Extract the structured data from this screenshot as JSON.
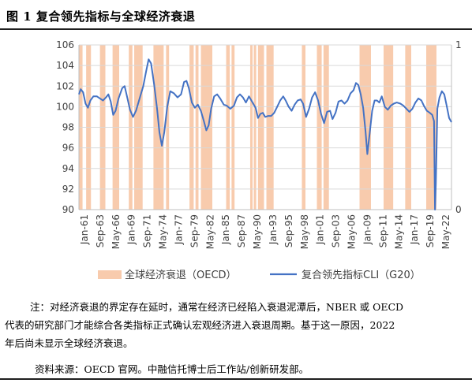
{
  "title": "图 1  复合领先指标与全球经济衰退",
  "chart_data": {
    "type": "line",
    "y_left": {
      "min": 90,
      "max": 106,
      "ticks": [
        90,
        92,
        94,
        96,
        98,
        100,
        102,
        104,
        106
      ]
    },
    "y_right": {
      "ticks": [
        "0",
        "1"
      ]
    },
    "x_tick_labels": [
      "Jan-61",
      "Sep-63",
      "May-66",
      "Jan-69",
      "Sep-71",
      "May-74",
      "Jan-77",
      "Sep-79",
      "May-82",
      "Jan-85",
      "Sep-87",
      "May-90",
      "Jan-93",
      "Sep-95",
      "May-98",
      "Jan-01",
      "Sep-03",
      "May-06",
      "Jan-09",
      "Sep-11",
      "May-14",
      "Jan-17",
      "Sep-19",
      "May-22"
    ],
    "x_range": [
      1961.0,
      2023.0
    ],
    "recession_periods": [
      [
        1961.0,
        1961.6
      ],
      [
        1962.2,
        1963.0
      ],
      [
        1964.5,
        1965.4
      ],
      [
        1966.6,
        1967.7
      ],
      [
        1969.3,
        1969.9
      ],
      [
        1970.2,
        1971.6
      ],
      [
        1973.4,
        1975.1
      ],
      [
        1975.5,
        1976.0
      ],
      [
        1979.4,
        1980.1
      ],
      [
        1980.4,
        1980.9
      ],
      [
        1981.3,
        1983.2
      ],
      [
        1985.5,
        1986.1
      ],
      [
        1986.4,
        1986.9
      ],
      [
        1989.5,
        1989.9
      ],
      [
        1990.1,
        1990.5
      ],
      [
        1990.8,
        1991.8
      ],
      [
        1992.2,
        1993.4
      ],
      [
        1998.1,
        1998.7
      ],
      [
        2000.6,
        2001.4
      ],
      [
        2001.7,
        2002.6
      ],
      [
        2007.7,
        2009.6
      ],
      [
        2011.7,
        2013.3
      ],
      [
        2015.3,
        2016.3
      ],
      [
        2018.8,
        2020.5
      ]
    ],
    "series": [
      {
        "name": "复合领先指标CLI（G20）",
        "color": "#4472C4",
        "points": [
          [
            1961.0,
            101.2
          ],
          [
            1961.3,
            101.7
          ],
          [
            1961.7,
            101.4
          ],
          [
            1962.1,
            100.3
          ],
          [
            1962.5,
            99.9
          ],
          [
            1962.9,
            100.6
          ],
          [
            1963.4,
            101.0
          ],
          [
            1964.0,
            101.0
          ],
          [
            1964.5,
            100.8
          ],
          [
            1965.0,
            100.6
          ],
          [
            1965.5,
            100.9
          ],
          [
            1965.9,
            101.2
          ],
          [
            1966.3,
            100.5
          ],
          [
            1966.7,
            99.2
          ],
          [
            1967.1,
            99.6
          ],
          [
            1967.6,
            100.8
          ],
          [
            1968.2,
            101.8
          ],
          [
            1968.6,
            102.0
          ],
          [
            1969.0,
            101.0
          ],
          [
            1969.5,
            99.7
          ],
          [
            1970.0,
            99.0
          ],
          [
            1970.5,
            99.6
          ],
          [
            1971.1,
            100.8
          ],
          [
            1971.7,
            102.0
          ],
          [
            1972.2,
            103.5
          ],
          [
            1972.6,
            104.6
          ],
          [
            1973.0,
            104.2
          ],
          [
            1973.5,
            102.2
          ],
          [
            1974.0,
            99.8
          ],
          [
            1974.4,
            97.5
          ],
          [
            1974.8,
            96.2
          ],
          [
            1975.2,
            97.5
          ],
          [
            1975.7,
            100.0
          ],
          [
            1976.2,
            101.5
          ],
          [
            1976.8,
            101.3
          ],
          [
            1977.4,
            100.9
          ],
          [
            1978.0,
            101.2
          ],
          [
            1978.5,
            102.4
          ],
          [
            1978.9,
            102.5
          ],
          [
            1979.3,
            101.8
          ],
          [
            1979.8,
            100.4
          ],
          [
            1980.3,
            99.9
          ],
          [
            1980.8,
            100.2
          ],
          [
            1981.3,
            99.6
          ],
          [
            1981.8,
            98.6
          ],
          [
            1982.2,
            97.7
          ],
          [
            1982.6,
            98.2
          ],
          [
            1983.0,
            99.8
          ],
          [
            1983.5,
            101.0
          ],
          [
            1984.0,
            101.2
          ],
          [
            1984.5,
            100.8
          ],
          [
            1985.1,
            100.2
          ],
          [
            1985.6,
            100.1
          ],
          [
            1986.2,
            99.8
          ],
          [
            1986.8,
            100.1
          ],
          [
            1987.3,
            100.9
          ],
          [
            1987.8,
            101.2
          ],
          [
            1988.3,
            100.9
          ],
          [
            1988.8,
            100.4
          ],
          [
            1989.3,
            101.0
          ],
          [
            1989.9,
            100.4
          ],
          [
            1990.4,
            99.9
          ],
          [
            1990.8,
            98.9
          ],
          [
            1991.2,
            99.3
          ],
          [
            1991.6,
            99.4
          ],
          [
            1992.0,
            99.0
          ],
          [
            1992.5,
            99.1
          ],
          [
            1993.0,
            99.1
          ],
          [
            1993.5,
            99.4
          ],
          [
            1994.0,
            100.0
          ],
          [
            1994.5,
            100.6
          ],
          [
            1995.0,
            101.0
          ],
          [
            1995.4,
            100.6
          ],
          [
            1995.9,
            100.0
          ],
          [
            1996.4,
            99.6
          ],
          [
            1996.9,
            100.2
          ],
          [
            1997.4,
            100.6
          ],
          [
            1997.9,
            100.7
          ],
          [
            1998.3,
            100.3
          ],
          [
            1998.8,
            99.0
          ],
          [
            1999.3,
            99.8
          ],
          [
            1999.8,
            100.9
          ],
          [
            2000.3,
            101.4
          ],
          [
            2000.8,
            100.6
          ],
          [
            2001.3,
            99.3
          ],
          [
            2001.8,
            98.4
          ],
          [
            2002.3,
            99.5
          ],
          [
            2002.8,
            99.6
          ],
          [
            2003.2,
            98.8
          ],
          [
            2003.7,
            99.4
          ],
          [
            2004.2,
            100.5
          ],
          [
            2004.7,
            100.6
          ],
          [
            2005.2,
            100.3
          ],
          [
            2005.7,
            100.6
          ],
          [
            2006.2,
            101.3
          ],
          [
            2006.7,
            101.6
          ],
          [
            2007.1,
            102.3
          ],
          [
            2007.5,
            102.1
          ],
          [
            2007.9,
            101.2
          ],
          [
            2008.3,
            99.9
          ],
          [
            2008.7,
            97.6
          ],
          [
            2009.0,
            95.4
          ],
          [
            2009.4,
            97.5
          ],
          [
            2009.8,
            99.6
          ],
          [
            2010.2,
            100.6
          ],
          [
            2010.6,
            100.6
          ],
          [
            2011.0,
            100.4
          ],
          [
            2011.4,
            101.0
          ],
          [
            2011.9,
            100.0
          ],
          [
            2012.4,
            99.7
          ],
          [
            2012.9,
            100.1
          ],
          [
            2013.4,
            100.3
          ],
          [
            2013.9,
            100.4
          ],
          [
            2014.5,
            100.3
          ],
          [
            2015.0,
            100.1
          ],
          [
            2015.5,
            99.8
          ],
          [
            2016.0,
            99.5
          ],
          [
            2016.5,
            99.8
          ],
          [
            2017.0,
            100.4
          ],
          [
            2017.5,
            100.8
          ],
          [
            2018.0,
            100.6
          ],
          [
            2018.4,
            100.1
          ],
          [
            2018.9,
            99.6
          ],
          [
            2019.4,
            99.4
          ],
          [
            2019.8,
            99.2
          ],
          [
            2020.1,
            98.6
          ],
          [
            2020.25,
            90.0
          ],
          [
            2020.4,
            92.5
          ],
          [
            2020.65,
            99.8
          ],
          [
            2021.0,
            100.9
          ],
          [
            2021.4,
            101.5
          ],
          [
            2021.8,
            101.2
          ],
          [
            2022.2,
            100.1
          ],
          [
            2022.6,
            98.9
          ],
          [
            2023.0,
            98.5
          ]
        ]
      }
    ],
    "legend": [
      "全球经济衰退（OECD）",
      "复合领先指标CLI（G20）"
    ],
    "legend_position": "bottom",
    "colors": {
      "recession": "#F8CBAD",
      "line": "#4472C4",
      "grid": "#D9D9D9",
      "axis": "#BFBFBF"
    }
  },
  "note": {
    "lines": [
      "注：对经济衰退的界定存在延时，通常在经济已经陷入衰退泥潭后，NBER 或 OECD",
      "代表的研究部门才能综合各类指标正式确认宏观经济进入衰退周期。基于这一原因，2022",
      "年后尚未显示全球经济衰退。"
    ]
  },
  "source": "资料来源：OECD 官网。中融信托博士后工作站/创新研发部。"
}
